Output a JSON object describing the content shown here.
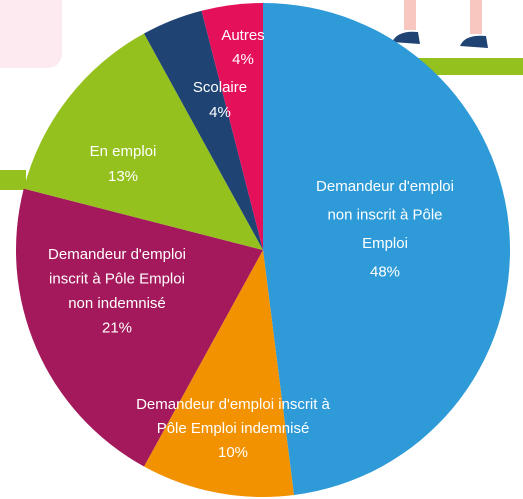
{
  "chart_data": {
    "type": "pie",
    "categories": [
      "Demandeur d'emploi non inscrit à Pôle Emploi",
      "Demandeur d'emploi inscrit à Pôle Emploi indemnisé",
      "Demandeur d'emploi inscrit à Pôle Emploi non indemnisé",
      "En emploi",
      "Scolaire",
      "Autres"
    ],
    "values": [
      48,
      10,
      21,
      13,
      4,
      4
    ],
    "value_labels": [
      "48%",
      "10%",
      "21%",
      "13%",
      "4%",
      "4%"
    ],
    "colors": [
      "#2e9bd8",
      "#f39200",
      "#a3195b",
      "#95c11f",
      "#1f4474",
      "#e5105a"
    ]
  }
}
